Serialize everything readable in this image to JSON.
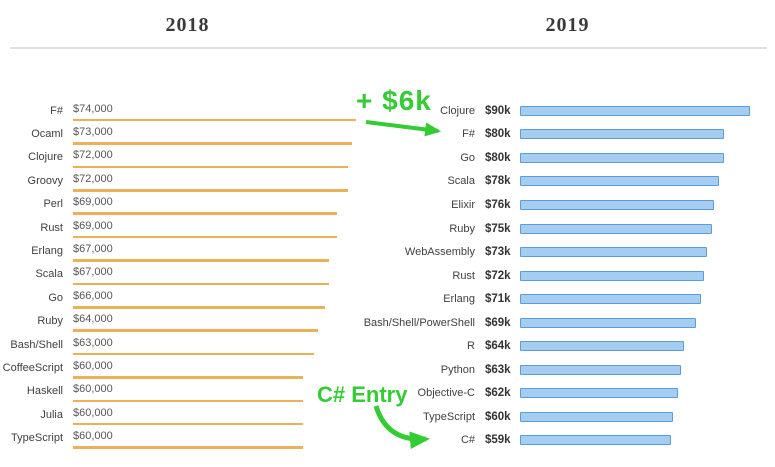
{
  "header": {
    "left_title": "2018",
    "right_title": "2019"
  },
  "annotations": {
    "raise": {
      "text": "+ $6k",
      "color": "#33cc33",
      "target": "F# 2019 row"
    },
    "entry": {
      "text": "C# Entry",
      "color": "#33cc33",
      "target": "C# 2019 row"
    }
  },
  "chart_data": [
    {
      "type": "bar",
      "title": "2018",
      "orientation": "horizontal",
      "unit": "USD salary",
      "bar_color": "#eab158",
      "xlim": [
        0,
        74000
      ],
      "grid": false,
      "legend": "none",
      "categories": [
        "F#",
        "Ocaml",
        "Clojure",
        "Groovy",
        "Perl",
        "Rust",
        "Erlang",
        "Scala",
        "Go",
        "Ruby",
        "Bash/Shell",
        "CoffeeScript",
        "Haskell",
        "Julia",
        "TypeScript"
      ],
      "values": [
        74000,
        73000,
        72000,
        72000,
        69000,
        69000,
        67000,
        67000,
        66000,
        64000,
        63000,
        60000,
        60000,
        60000,
        60000
      ],
      "value_labels": [
        "$74,000",
        "$73,000",
        "$72,000",
        "$72,000",
        "$69,000",
        "$69,000",
        "$67,000",
        "$67,000",
        "$66,000",
        "$64,000",
        "$63,000",
        "$60,000",
        "$60,000",
        "$60,000",
        "$60,000"
      ]
    },
    {
      "type": "bar",
      "title": "2019",
      "orientation": "horizontal",
      "unit": "USD salary",
      "bar_color": "#a5cdf2",
      "bar_border_color": "#5b9dd8",
      "xlim": [
        0,
        90000
      ],
      "grid": false,
      "legend": "none",
      "categories": [
        "Clojure",
        "F#",
        "Go",
        "Scala",
        "Elixir",
        "Ruby",
        "WebAssembly",
        "Rust",
        "Erlang",
        "Bash/Shell/PowerShell",
        "R",
        "Python",
        "Objective-C",
        "TypeScript",
        "C#"
      ],
      "values": [
        90000,
        80000,
        80000,
        78000,
        76000,
        75000,
        73000,
        72000,
        71000,
        69000,
        64000,
        63000,
        62000,
        60000,
        59000
      ],
      "value_labels": [
        "$90k",
        "$80k",
        "$80k",
        "$78k",
        "$76k",
        "$75k",
        "$73k",
        "$72k",
        "$71k",
        "$69k",
        "$64k",
        "$63k",
        "$62k",
        "$60k",
        "$59k"
      ]
    }
  ]
}
